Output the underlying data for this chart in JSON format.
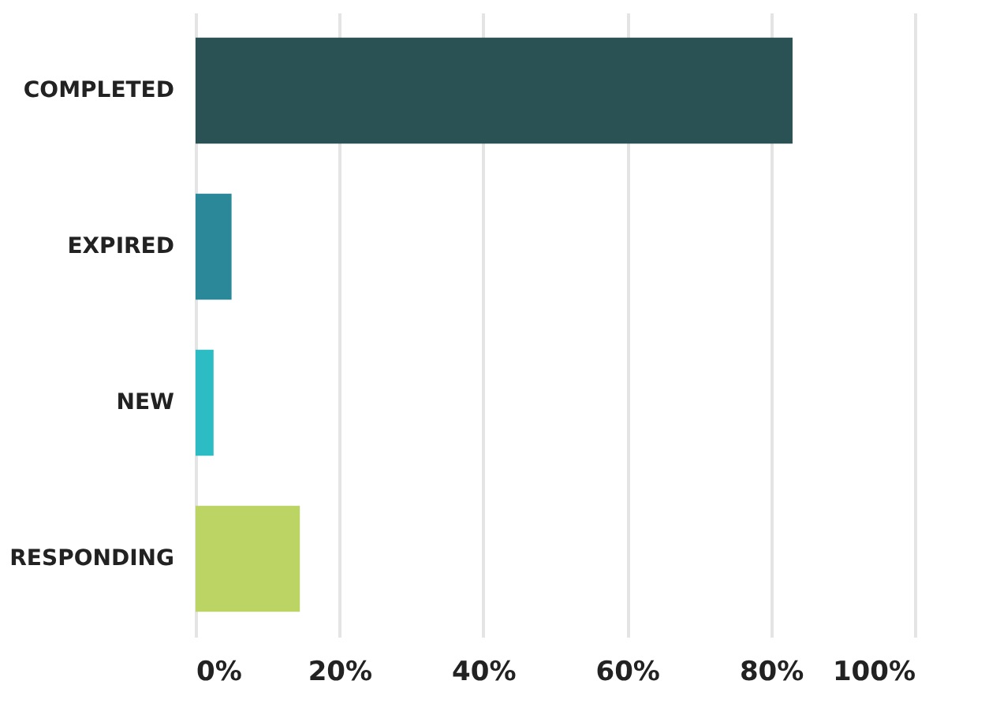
{
  "chart_data": {
    "type": "bar",
    "orientation": "horizontal",
    "categories": [
      "COMPLETED",
      "EXPIRED",
      "NEW",
      "RESPONDING"
    ],
    "values": [
      83,
      5,
      2.5,
      14.5
    ],
    "colors": [
      "#2a5254",
      "#2a8899",
      "#2bbcc4",
      "#bcd464"
    ],
    "xlim": [
      0,
      100
    ],
    "xticks": [
      {
        "value": 0,
        "label": "0%"
      },
      {
        "value": 20,
        "label": "20%"
      },
      {
        "value": 40,
        "label": "40%"
      },
      {
        "value": 60,
        "label": "60%"
      },
      {
        "value": 80,
        "label": "80%"
      },
      {
        "value": 100,
        "label": "100%"
      }
    ],
    "grid": "x",
    "legend": false
  }
}
